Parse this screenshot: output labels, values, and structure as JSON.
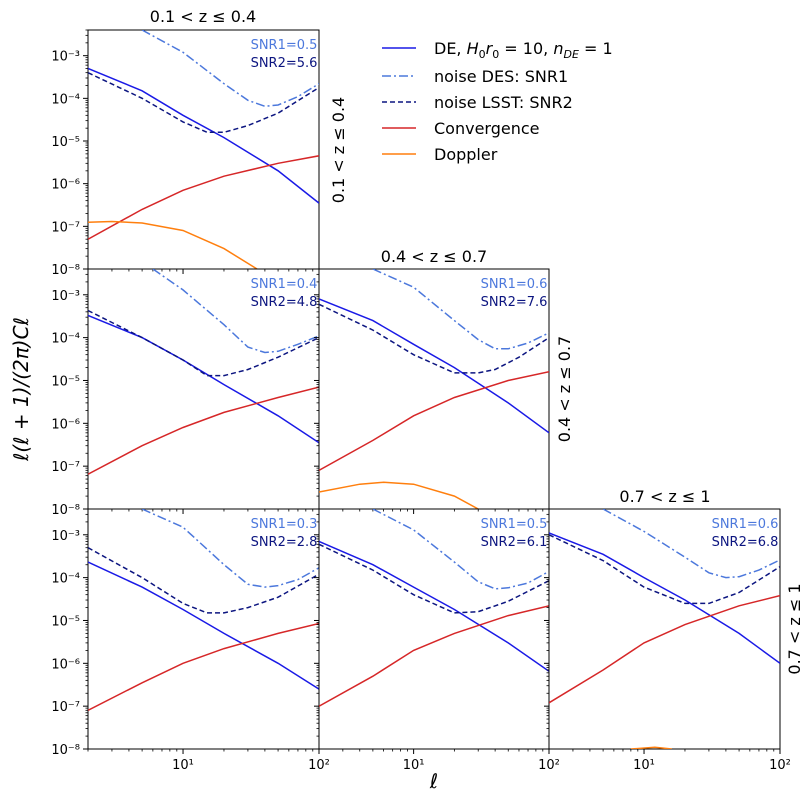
{
  "figure": {
    "ylabel": "ℓ(ℓ + 1)/(2π)Cℓ",
    "xlabel": "ℓ"
  },
  "colors": {
    "de": "#1a1ae6",
    "noise_des": "#4c78dc",
    "noise_lsst": "#0c1580",
    "convergence": "#d62728",
    "doppler": "#ff7f0e"
  },
  "legend": {
    "entries": [
      {
        "key": "de",
        "label": "DE, H0r0 = 10, nDE = 1"
      },
      {
        "key": "noise_des",
        "label": "noise DES: SNR1"
      },
      {
        "key": "noise_lsst",
        "label": "noise LSST: SNR2"
      },
      {
        "key": "convergence",
        "label": "Convergence"
      },
      {
        "key": "doppler",
        "label": "Doppler"
      }
    ]
  },
  "chart_data": {
    "type": "line",
    "xscale": "log",
    "yscale": "log",
    "xlim": [
      2,
      100
    ],
    "ylim": [
      1e-08,
      0.004
    ],
    "x_ticks": [
      "10¹",
      "10²"
    ],
    "y_ticks": [
      "10⁻⁸",
      "10⁻⁷",
      "10⁻⁶",
      "10⁻⁵",
      "10⁻⁴",
      "10⁻³"
    ],
    "row_labels": [
      "0.1 < z ≤ 0.4",
      "0.4 < z ≤ 0.7",
      "0.7 < z ≤ 1"
    ],
    "col_titles": [
      "0.1 < z ≤ 0.4",
      "0.4 < z ≤ 0.7",
      "0.7 < z ≤ 1"
    ],
    "panels": [
      {
        "row": 0,
        "col": 0,
        "snr1": "SNR1=0.5",
        "snr2": "SNR2=5.6",
        "series": {
          "de": [
            [
              2,
              0.0005
            ],
            [
              5,
              0.00015
            ],
            [
              10,
              4e-05
            ],
            [
              20,
              1.2e-05
            ],
            [
              50,
              2e-06
            ],
            [
              100,
              3.5e-07
            ]
          ],
          "noise_des": [
            [
              5,
              0.004
            ],
            [
              10,
              0.0012
            ],
            [
              20,
              0.00022
            ],
            [
              30,
              9e-05
            ],
            [
              40,
              6.5e-05
            ],
            [
              50,
              7e-05
            ],
            [
              70,
              0.00011
            ],
            [
              100,
              0.00022
            ]
          ],
          "noise_lsst": [
            [
              2,
              0.0004
            ],
            [
              5,
              0.0001
            ],
            [
              10,
              2.8e-05
            ],
            [
              15,
              1.6e-05
            ],
            [
              20,
              1.6e-05
            ],
            [
              30,
              2.3e-05
            ],
            [
              50,
              4.5e-05
            ],
            [
              100,
              0.00018
            ]
          ],
          "convergence": [
            [
              2,
              5e-08
            ],
            [
              5,
              2.5e-07
            ],
            [
              10,
              7e-07
            ],
            [
              20,
              1.5e-06
            ],
            [
              50,
              3e-06
            ],
            [
              100,
              4.5e-06
            ]
          ],
          "doppler": [
            [
              2,
              1.25e-07
            ],
            [
              3,
              1.3e-07
            ],
            [
              5,
              1.2e-07
            ],
            [
              10,
              8e-08
            ],
            [
              20,
              3e-08
            ],
            [
              35,
              1e-08
            ]
          ]
        }
      },
      {
        "row": 1,
        "col": 0,
        "snr1": "SNR1=0.4",
        "snr2": "SNR2=4.8",
        "series": {
          "de": [
            [
              2,
              0.00033
            ],
            [
              5,
              0.0001
            ],
            [
              10,
              3e-05
            ],
            [
              20,
              8e-06
            ],
            [
              50,
              1.5e-06
            ],
            [
              100,
              3.5e-07
            ]
          ],
          "noise_des": [
            [
              6,
              0.004
            ],
            [
              10,
              0.0013
            ],
            [
              20,
              0.0002
            ],
            [
              30,
              6e-05
            ],
            [
              40,
              4.5e-05
            ],
            [
              50,
              4.8e-05
            ],
            [
              70,
              7e-05
            ],
            [
              100,
              0.00011
            ]
          ],
          "noise_lsst": [
            [
              2,
              0.00043
            ],
            [
              5,
              0.0001
            ],
            [
              10,
              3e-05
            ],
            [
              15,
              1.3e-05
            ],
            [
              20,
              1.3e-05
            ],
            [
              30,
              1.8e-05
            ],
            [
              50,
              3.5e-05
            ],
            [
              100,
              0.0001
            ]
          ],
          "convergence": [
            [
              2,
              6.5e-08
            ],
            [
              5,
              3e-07
            ],
            [
              10,
              8e-07
            ],
            [
              20,
              1.8e-06
            ],
            [
              50,
              4e-06
            ],
            [
              100,
              7e-06
            ]
          ]
        }
      },
      {
        "row": 1,
        "col": 1,
        "snr1": "SNR1=0.6",
        "snr2": "SNR2=7.6",
        "series": {
          "de": [
            [
              2,
              0.0008
            ],
            [
              5,
              0.00025
            ],
            [
              10,
              7e-05
            ],
            [
              20,
              2e-05
            ],
            [
              50,
              3e-06
            ],
            [
              100,
              6e-07
            ]
          ],
          "noise_des": [
            [
              5,
              0.004
            ],
            [
              10,
              0.0015
            ],
            [
              20,
              0.00025
            ],
            [
              30,
              9e-05
            ],
            [
              40,
              5.5e-05
            ],
            [
              50,
              5.5e-05
            ],
            [
              70,
              7.5e-05
            ],
            [
              100,
              0.00013
            ]
          ],
          "noise_lsst": [
            [
              2,
              0.0006
            ],
            [
              5,
              0.00015
            ],
            [
              10,
              4e-05
            ],
            [
              20,
              1.5e-05
            ],
            [
              30,
              1.5e-05
            ],
            [
              40,
              1.8e-05
            ],
            [
              60,
              3.5e-05
            ],
            [
              100,
              0.0001
            ]
          ],
          "convergence": [
            [
              2,
              8e-08
            ],
            [
              5,
              4e-07
            ],
            [
              10,
              1.5e-06
            ],
            [
              20,
              4e-06
            ],
            [
              50,
              1e-05
            ],
            [
              100,
              1.6e-05
            ]
          ],
          "doppler": [
            [
              2,
              2.5e-08
            ],
            [
              4,
              3.8e-08
            ],
            [
              6,
              4.2e-08
            ],
            [
              10,
              3.8e-08
            ],
            [
              20,
              2e-08
            ],
            [
              30,
              1e-08
            ]
          ]
        }
      },
      {
        "row": 2,
        "col": 0,
        "snr1": "SNR1=0.3",
        "snr2": "SNR2=2.8",
        "series": {
          "de": [
            [
              2,
              0.00023
            ],
            [
              5,
              6e-05
            ],
            [
              10,
              1.8e-05
            ],
            [
              20,
              5e-06
            ],
            [
              50,
              1e-06
            ],
            [
              100,
              2.5e-07
            ]
          ],
          "noise_des": [
            [
              5,
              0.004
            ],
            [
              10,
              0.0015
            ],
            [
              20,
              0.0002
            ],
            [
              30,
              7e-05
            ],
            [
              40,
              6e-05
            ],
            [
              50,
              6.5e-05
            ],
            [
              70,
              9e-05
            ],
            [
              100,
              0.00017
            ]
          ],
          "noise_lsst": [
            [
              2,
              0.0005
            ],
            [
              5,
              0.0001
            ],
            [
              10,
              2.5e-05
            ],
            [
              15,
              1.5e-05
            ],
            [
              20,
              1.5e-05
            ],
            [
              30,
              2e-05
            ],
            [
              50,
              3.5e-05
            ],
            [
              100,
              0.00012
            ]
          ],
          "convergence": [
            [
              2,
              8e-08
            ],
            [
              5,
              3.5e-07
            ],
            [
              10,
              1e-06
            ],
            [
              20,
              2.2e-06
            ],
            [
              50,
              5e-06
            ],
            [
              100,
              8.5e-06
            ]
          ]
        }
      },
      {
        "row": 2,
        "col": 1,
        "snr1": "SNR1=0.5",
        "snr2": "SNR2=6.1",
        "series": {
          "de": [
            [
              2,
              0.0007
            ],
            [
              5,
              0.0002
            ],
            [
              10,
              6e-05
            ],
            [
              20,
              1.8e-05
            ],
            [
              50,
              3e-06
            ],
            [
              100,
              6.5e-07
            ]
          ],
          "noise_des": [
            [
              5,
              0.004
            ],
            [
              10,
              0.0013
            ],
            [
              20,
              0.00023
            ],
            [
              30,
              8e-05
            ],
            [
              40,
              5.5e-05
            ],
            [
              50,
              5.8e-05
            ],
            [
              70,
              7.5e-05
            ],
            [
              100,
              0.00014
            ]
          ],
          "noise_lsst": [
            [
              2,
              0.0006
            ],
            [
              5,
              0.00015
            ],
            [
              10,
              4e-05
            ],
            [
              20,
              1.5e-05
            ],
            [
              30,
              1.6e-05
            ],
            [
              50,
              2.8e-05
            ],
            [
              100,
              8.5e-05
            ]
          ],
          "convergence": [
            [
              2,
              1e-07
            ],
            [
              5,
              5e-07
            ],
            [
              10,
              2e-06
            ],
            [
              20,
              5e-06
            ],
            [
              50,
              1.3e-05
            ],
            [
              100,
              2.2e-05
            ]
          ]
        }
      },
      {
        "row": 2,
        "col": 2,
        "snr1": "SNR1=0.6",
        "snr2": "SNR2=6.8",
        "series": {
          "de": [
            [
              2,
              0.0011
            ],
            [
              5,
              0.00035
            ],
            [
              10,
              0.0001
            ],
            [
              20,
              3e-05
            ],
            [
              50,
              5e-06
            ],
            [
              100,
              1e-06
            ]
          ],
          "noise_des": [
            [
              5,
              0.004
            ],
            [
              10,
              0.0012
            ],
            [
              20,
              0.0003
            ],
            [
              30,
              0.00013
            ],
            [
              40,
              0.0001
            ],
            [
              50,
              0.000105
            ],
            [
              70,
              0.00015
            ],
            [
              100,
              0.00026
            ]
          ],
          "noise_lsst": [
            [
              2,
              0.001
            ],
            [
              5,
              0.00025
            ],
            [
              10,
              6e-05
            ],
            [
              20,
              2.5e-05
            ],
            [
              30,
              2.5e-05
            ],
            [
              50,
              4.5e-05
            ],
            [
              100,
              0.00018
            ]
          ],
          "convergence": [
            [
              2,
              1.2e-07
            ],
            [
              5,
              7e-07
            ],
            [
              10,
              3e-06
            ],
            [
              20,
              8e-06
            ],
            [
              50,
              2.2e-05
            ],
            [
              100,
              3.8e-05
            ]
          ],
          "doppler": [
            [
              8,
              1e-08
            ],
            [
              12,
              1.1e-08
            ],
            [
              16,
              1e-08
            ]
          ]
        }
      }
    ]
  }
}
